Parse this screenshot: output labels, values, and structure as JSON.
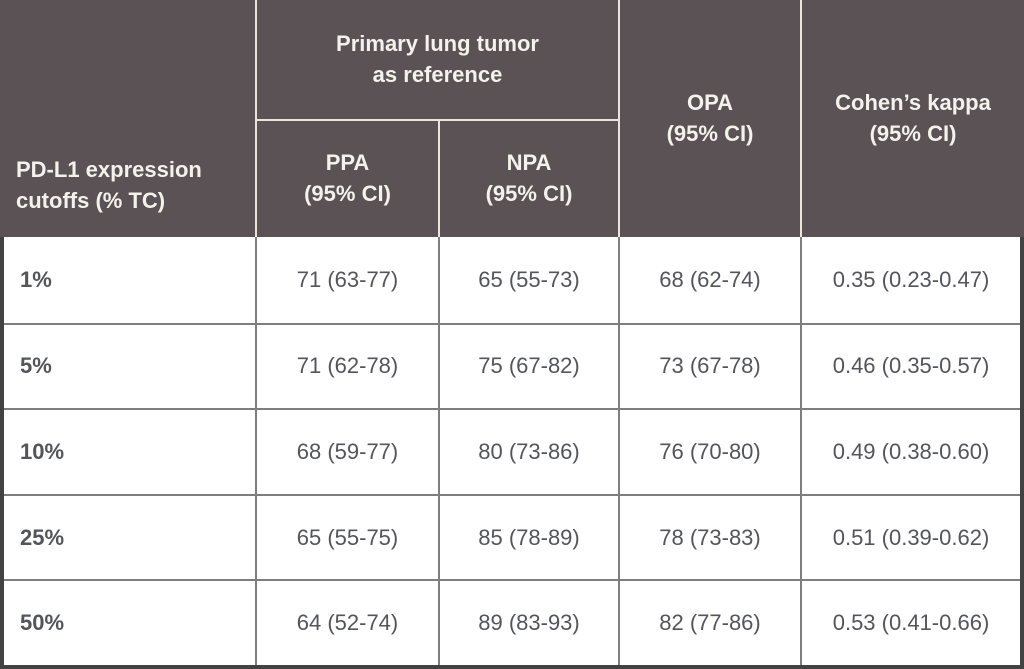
{
  "chart_data": {
    "type": "table",
    "title": "",
    "group_header": "Primary lung tumor as reference",
    "group_header_spans": [
      "PPA (95% CI)",
      "NPA (95% CI)"
    ],
    "row_header": "PD-L1 expression cutoffs (% TC)",
    "columns": [
      "PD-L1 expression cutoffs (% TC)",
      "PPA (95% CI)",
      "NPA (95% CI)",
      "OPA (95% CI)",
      "Cohen’s kappa (95% CI)"
    ],
    "rows": [
      [
        "1%",
        "71 (63-77)",
        "65 (55-73)",
        "68 (62-74)",
        "0.35 (0.23-0.47)"
      ],
      [
        "5%",
        "71 (62-78)",
        "75 (67-82)",
        "73 (67-78)",
        "0.46 (0.35-0.57)"
      ],
      [
        "10%",
        "68 (59-77)",
        "80 (73-86)",
        "76 (70-80)",
        "0.49 (0.38-0.60)"
      ],
      [
        "25%",
        "65 (55-75)",
        "85 (78-89)",
        "78 (73-83)",
        "0.51 (0.39-0.62)"
      ],
      [
        "50%",
        "64 (52-74)",
        "89 (83-93)",
        "82 (77-86)",
        "0.53 (0.41-0.66)"
      ]
    ]
  },
  "table": {
    "group_header": {
      "line1": "Primary lung tumor",
      "line2": "as reference"
    },
    "row_header": {
      "line1": "PD-L1 expression",
      "line2": "cutoffs (% TC)"
    },
    "col_ppa": {
      "line1": "PPA",
      "line2": "(95% CI)"
    },
    "col_npa": {
      "line1": "NPA",
      "line2": "(95% CI)"
    },
    "col_opa": {
      "line1": "OPA",
      "line2": "(95% CI)"
    },
    "col_kappa": {
      "line1": "Cohen’s kappa",
      "line2": "(95% CI)"
    }
  },
  "colors": {
    "header_bg": "#5a5254",
    "header_text": "#f5f1ec",
    "header_divider": "#e9e5e1",
    "body_text": "#54555a",
    "grid_line": "#7e7e7e",
    "outer_border": "#424242",
    "body_bg": "#ffffff"
  }
}
